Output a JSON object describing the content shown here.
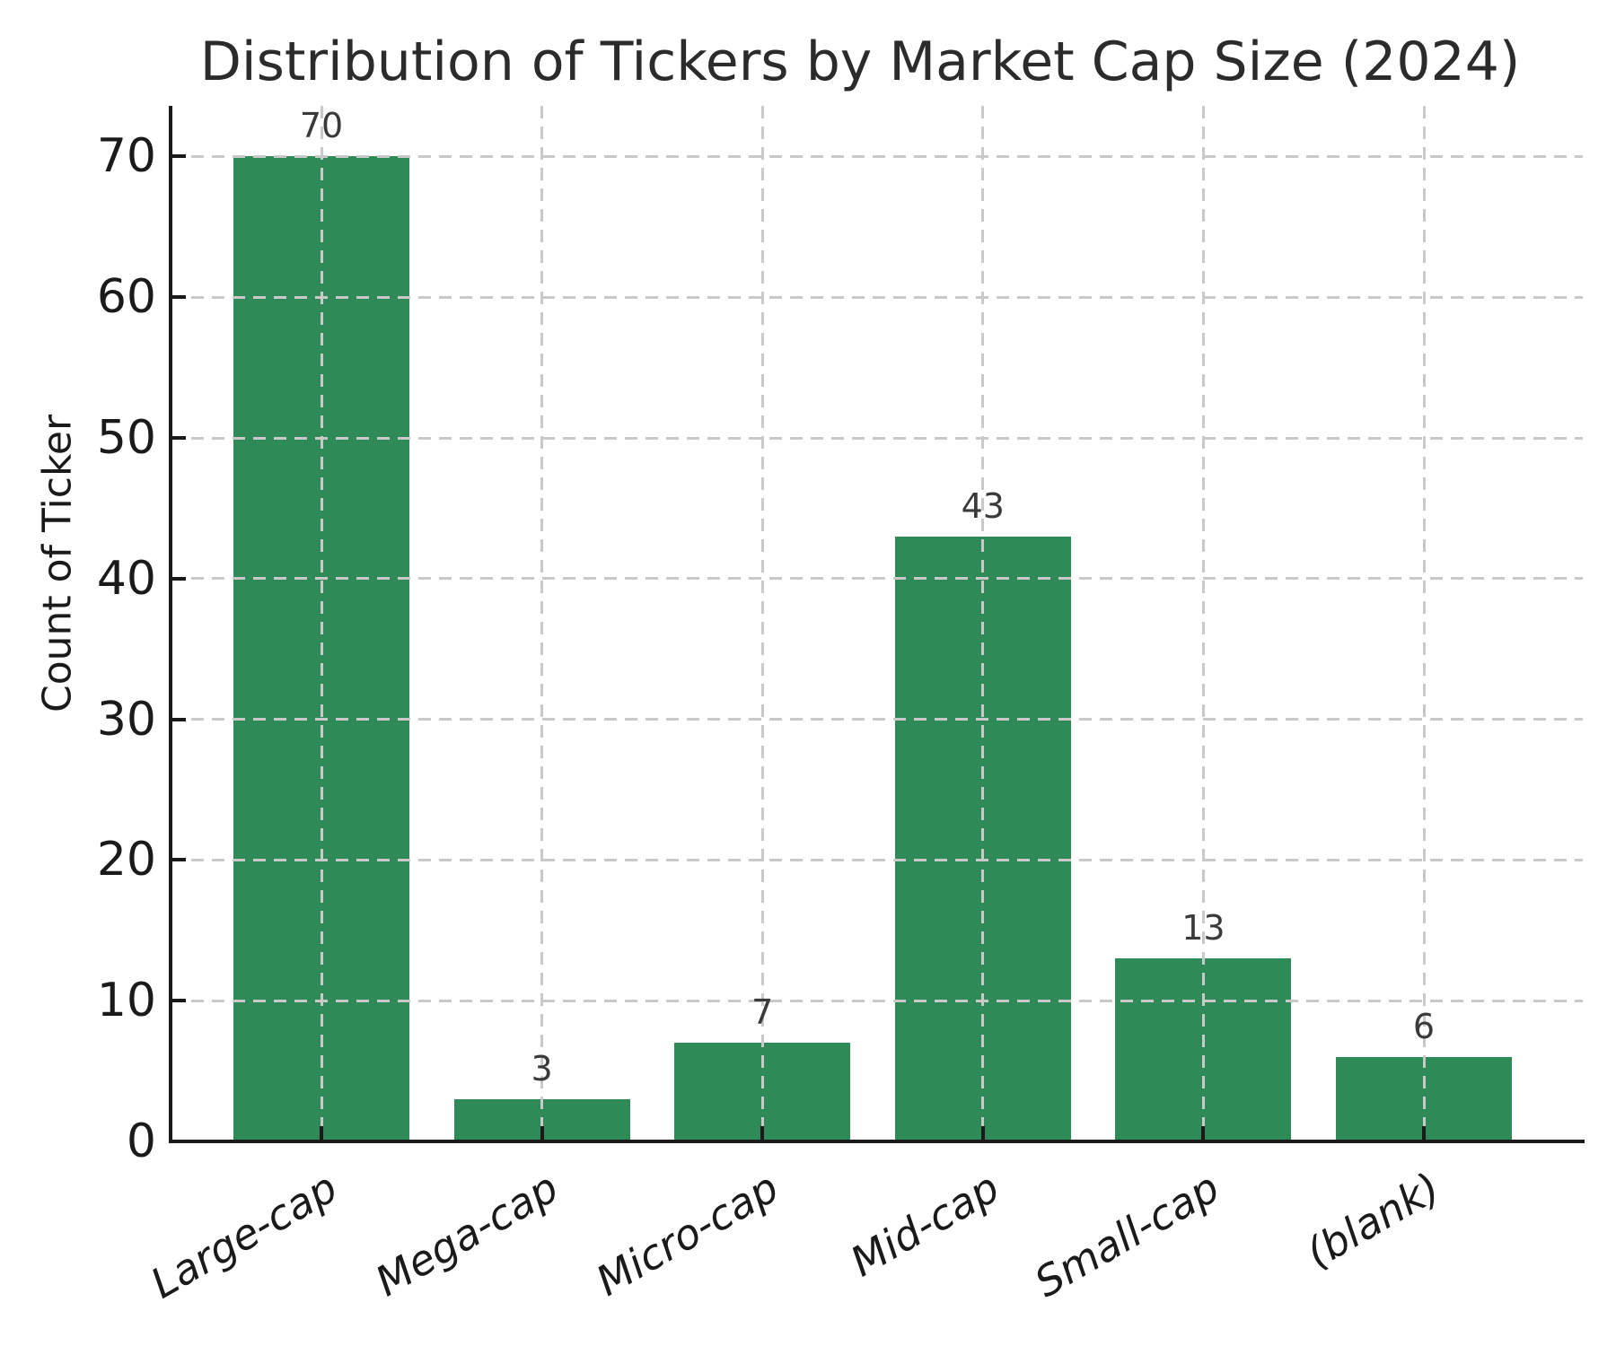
{
  "chart_data": {
    "type": "bar",
    "title": "Distribution of Tickers by Market Cap Size (2024)",
    "xlabel": "",
    "ylabel": "Count of Ticker",
    "categories": [
      "Large-cap",
      "Mega-cap",
      "Micro-cap",
      "Mid-cap",
      "Small-cap",
      "(blank)"
    ],
    "values": [
      70,
      3,
      7,
      43,
      13,
      6
    ],
    "value_labels": [
      "70",
      "3",
      "7",
      "43",
      "13",
      "6"
    ],
    "y_ticks": [
      0,
      10,
      20,
      30,
      40,
      50,
      60,
      70
    ],
    "ylim": [
      0,
      73.6
    ],
    "grid": "dashed, drawn above bars",
    "legend": null,
    "x_tick_style": "italic, rotated -30deg",
    "colors": {
      "bar": "#2e8b57",
      "grid": "#c9c9c9",
      "axis": "#1a1a1a",
      "title_text": "#2b2b2b",
      "tick_text": "#1a1a1a",
      "value_text": "#3a3a3a",
      "background": "#ffffff"
    }
  }
}
